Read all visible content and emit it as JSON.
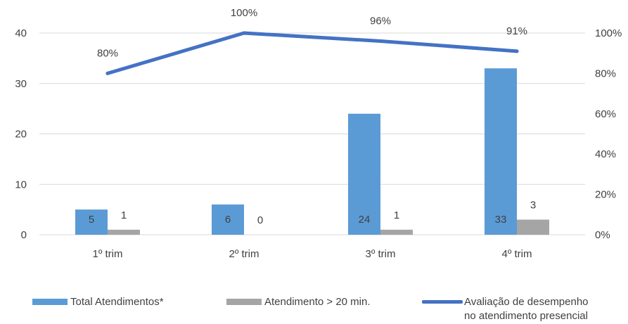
{
  "colors": {
    "total": "#5b9bd5",
    "over20": "#a5a5a5",
    "line": "#4472c4",
    "grid": "#d9d9d9",
    "text": "#404040"
  },
  "chart_data": {
    "type": "bar",
    "categories": [
      "1º trim",
      "2º trim",
      "3º trim",
      "4º trim"
    ],
    "series": [
      {
        "name": "Total Atendimentos*",
        "type": "bar",
        "axis": "left",
        "values": [
          5,
          6,
          24,
          33
        ],
        "labels": [
          "5",
          "6",
          "24",
          "33"
        ]
      },
      {
        "name": "Atendimento > 20 min.",
        "type": "bar",
        "axis": "left",
        "values": [
          1,
          0,
          1,
          3
        ],
        "labels": [
          "1",
          "0",
          "1",
          "3"
        ]
      },
      {
        "name": "Avaliação de desempenho no atendimento presencial",
        "type": "line",
        "axis": "right",
        "values": [
          0.8,
          1.0,
          0.96,
          0.91
        ],
        "labels": [
          "80%",
          "100%",
          "96%",
          "91%"
        ]
      }
    ],
    "y_left": {
      "min": 0,
      "max": 40,
      "ticks": [
        "0",
        "10",
        "20",
        "30",
        "40"
      ]
    },
    "y_right": {
      "min": 0,
      "max": 1,
      "ticks": [
        "0%",
        "20%",
        "40%",
        "60%",
        "80%",
        "100%"
      ]
    },
    "grid": true,
    "legend": "bottom"
  },
  "legend": {
    "total": "Total Atendimentos*",
    "over20": "Atendimento > 20 min.",
    "line_l1": "Avaliação de desempenho",
    "line_l2": "no atendimento presencial"
  }
}
